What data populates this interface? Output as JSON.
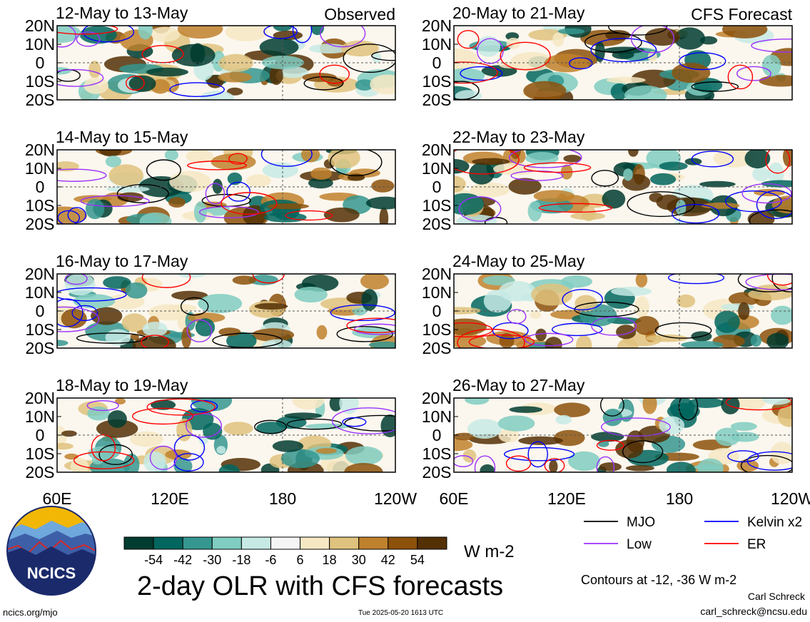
{
  "chart_data": {
    "type": "heatmap",
    "title": "2-day OLR with CFS forecasts",
    "unit_label": "W m-2",
    "contour_note": "Contours at -12, -36 W m-2",
    "columns": [
      {
        "header": "Observed",
        "panels": [
          "12-May to 13-May",
          "14-May to 15-May",
          "16-May to 17-May",
          "18-May to 19-May"
        ]
      },
      {
        "header": "CFS Forecast",
        "panels": [
          "20-May to 21-May",
          "22-May to 23-May",
          "24-May to 25-May",
          "26-May to 27-May"
        ]
      }
    ],
    "lat_ticks": [
      "20N",
      "10N",
      "0",
      "10S",
      "20S"
    ],
    "lon_ticks": [
      "60E",
      "120E",
      "180",
      "120W"
    ],
    "lat_range": [
      -20,
      20
    ],
    "lon_range": [
      60,
      240
    ],
    "colorbar": {
      "ticks": [
        "-54",
        "-42",
        "-30",
        "-18",
        "-6",
        "6",
        "18",
        "30",
        "42",
        "54"
      ],
      "colors": [
        "#003c30",
        "#01665e",
        "#35978f",
        "#80cdc1",
        "#c7eae5",
        "#f5f5f5",
        "#f6e8c3",
        "#dfc27d",
        "#bf812d",
        "#8c510a",
        "#543005"
      ]
    },
    "legend": [
      {
        "label": "MJO",
        "color": "#000000"
      },
      {
        "label": "Kelvin x2",
        "color": "#0000ff"
      },
      {
        "label": "Low",
        "color": "#9b30ff"
      },
      {
        "label": "ER",
        "color": "#ff0000"
      }
    ]
  },
  "footer": {
    "logo_text": "NCICS",
    "url": "ncics.org/mjo",
    "timestamp": "Tue 2025-05-20 1613 UTC",
    "author": "Carl Schreck",
    "email": "carl_schreck@ncsu.edu"
  }
}
